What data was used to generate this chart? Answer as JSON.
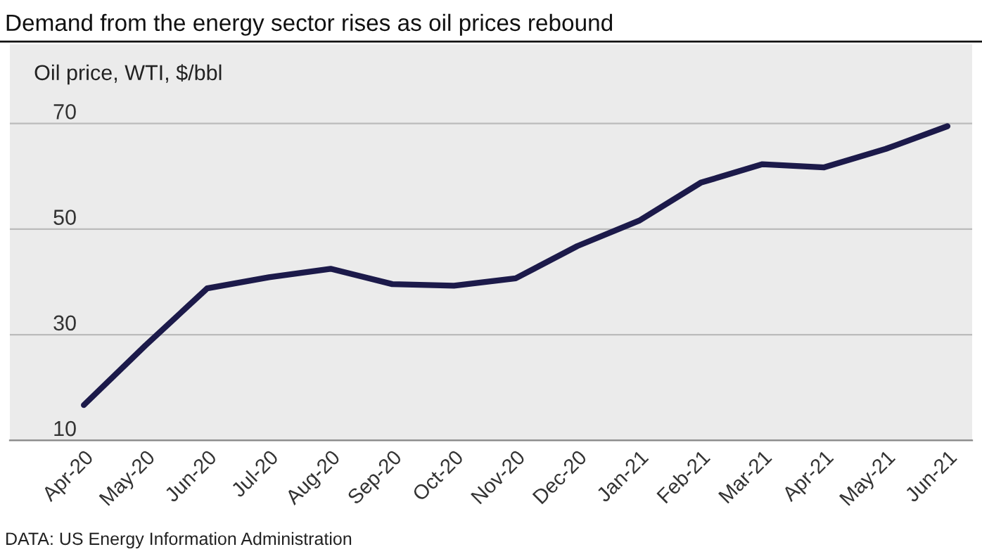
{
  "chart_data": {
    "type": "line",
    "title": "Demand from the energy sector rises as oil prices rebound",
    "ylabel": "Oil price, WTI, $/bbl",
    "categories": [
      "Apr-20",
      "May-20",
      "Jun-20",
      "Jul-20",
      "Aug-20",
      "Sep-20",
      "Oct-20",
      "Nov-20",
      "Dec-20",
      "Jan-21",
      "Feb-21",
      "Mar-21",
      "Apr-21",
      "May-21",
      "Jun-21"
    ],
    "series": [
      {
        "color": "#1c1a4a",
        "values": [
          16.7,
          28,
          38.8,
          40.9,
          42.5,
          39.6,
          39.3,
          40.7,
          46.8,
          51.6,
          58.8,
          62.3,
          61.7,
          65.2,
          69.5
        ]
      }
    ],
    "ylim": [
      10,
      85
    ],
    "yticks": [
      10,
      30,
      50,
      70
    ],
    "grid": "y",
    "marker": "none",
    "line_style": "solid",
    "annotations": [
      "DATA: US Energy Information Administration"
    ]
  }
}
